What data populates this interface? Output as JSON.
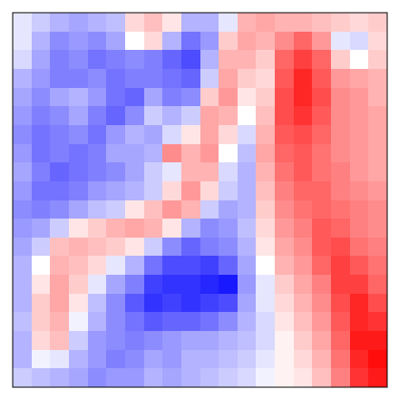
{
  "chart_data": {
    "type": "heatmap",
    "tick_labels": false,
    "color_range": [
      -1,
      1
    ],
    "cells": [
      [
        -0.1,
        -0.2,
        -0.3,
        -0.35,
        -0.3,
        -0.25,
        0.15,
        0.25,
        0.1,
        -0.3,
        -0.3,
        -0.1,
        0.3,
        0.35,
        0.3,
        0.3,
        0.25,
        0.2,
        0.15,
        0.2
      ],
      [
        -0.1,
        -0.3,
        -0.45,
        -0.4,
        -0.45,
        -0.35,
        0.0,
        0.15,
        -0.3,
        -0.55,
        -0.4,
        0.2,
        0.35,
        0.3,
        0.45,
        0.6,
        0.4,
        -0.1,
        -0.15,
        0.15
      ],
      [
        -0.15,
        -0.35,
        -0.5,
        -0.45,
        -0.55,
        -0.5,
        -0.45,
        -0.5,
        -0.6,
        -0.7,
        -0.3,
        0.3,
        0.3,
        0.2,
        0.6,
        0.75,
        0.6,
        0.2,
        0.0,
        0.2
      ],
      [
        -0.3,
        -0.4,
        -0.5,
        -0.5,
        -0.45,
        -0.55,
        -0.5,
        -0.5,
        -0.55,
        -0.6,
        -0.2,
        0.35,
        0.2,
        0.15,
        0.65,
        0.85,
        0.65,
        0.4,
        0.35,
        0.3
      ],
      [
        -0.35,
        -0.45,
        -0.35,
        -0.3,
        -0.4,
        -0.55,
        -0.6,
        -0.35,
        -0.5,
        -0.45,
        0.2,
        0.4,
        0.1,
        0.2,
        0.7,
        0.85,
        0.7,
        0.45,
        0.4,
        0.3
      ],
      [
        -0.4,
        -0.5,
        -0.45,
        -0.35,
        -0.5,
        -0.6,
        -0.45,
        -0.2,
        -0.3,
        -0.2,
        0.35,
        0.3,
        0.0,
        0.25,
        0.7,
        0.8,
        0.65,
        0.45,
        0.4,
        0.35
      ],
      [
        -0.45,
        -0.55,
        -0.5,
        -0.45,
        -0.55,
        -0.4,
        -0.3,
        -0.35,
        -0.15,
        0.1,
        0.35,
        0.15,
        -0.15,
        0.3,
        0.65,
        0.7,
        0.6,
        0.45,
        0.4,
        0.35
      ],
      [
        -0.4,
        -0.55,
        -0.5,
        -0.55,
        -0.5,
        -0.35,
        -0.35,
        -0.3,
        0.45,
        0.3,
        0.4,
        0.0,
        -0.25,
        0.35,
        0.6,
        0.65,
        0.55,
        0.45,
        0.4,
        0.35
      ],
      [
        -0.35,
        -0.5,
        -0.6,
        -0.55,
        -0.5,
        -0.45,
        -0.35,
        -0.2,
        -0.1,
        0.3,
        0.3,
        -0.15,
        -0.3,
        0.3,
        0.55,
        0.65,
        0.55,
        0.5,
        0.4,
        0.35
      ],
      [
        -0.4,
        -0.55,
        -0.55,
        -0.5,
        -0.4,
        -0.35,
        -0.3,
        -0.2,
        0.15,
        0.4,
        0.15,
        -0.2,
        -0.3,
        0.25,
        0.5,
        0.6,
        0.6,
        0.5,
        0.45,
        0.4
      ],
      [
        -0.45,
        -0.5,
        -0.45,
        -0.35,
        -0.25,
        -0.2,
        0.1,
        0.25,
        0.4,
        0.3,
        -0.2,
        -0.35,
        -0.3,
        0.2,
        0.45,
        0.55,
        0.6,
        0.55,
        0.5,
        0.45
      ],
      [
        -0.4,
        -0.35,
        -0.2,
        0.1,
        0.2,
        0.3,
        0.35,
        0.3,
        0.1,
        -0.3,
        -0.45,
        -0.4,
        -0.25,
        0.15,
        0.4,
        0.5,
        0.65,
        0.6,
        0.5,
        0.45
      ],
      [
        -0.35,
        -0.2,
        0.25,
        0.3,
        0.25,
        0.2,
        0.1,
        -0.2,
        -0.45,
        -0.6,
        -0.5,
        -0.45,
        -0.3,
        0.1,
        0.35,
        0.45,
        0.65,
        0.7,
        0.55,
        0.5
      ],
      [
        -0.3,
        0.0,
        0.3,
        0.25,
        0.15,
        -0.1,
        -0.3,
        -0.55,
        -0.7,
        -0.7,
        -0.75,
        -0.6,
        -0.35,
        0.0,
        0.3,
        0.4,
        0.6,
        0.75,
        0.65,
        0.55
      ],
      [
        -0.3,
        0.1,
        0.35,
        0.2,
        -0.1,
        -0.35,
        -0.5,
        -0.75,
        -0.8,
        -0.8,
        -0.85,
        -0.9,
        -0.4,
        -0.1,
        0.2,
        0.35,
        0.5,
        0.75,
        0.75,
        0.6
      ],
      [
        -0.3,
        0.2,
        0.35,
        0.1,
        -0.25,
        -0.45,
        -0.65,
        -0.8,
        -0.75,
        -0.8,
        -0.75,
        -0.7,
        -0.35,
        -0.1,
        0.15,
        0.3,
        0.45,
        0.7,
        0.85,
        0.7
      ],
      [
        -0.25,
        0.2,
        0.3,
        -0.05,
        -0.3,
        -0.45,
        -0.55,
        -0.65,
        -0.6,
        -0.6,
        -0.55,
        -0.45,
        -0.3,
        -0.15,
        0.1,
        0.25,
        0.4,
        0.65,
        0.85,
        0.8
      ],
      [
        -0.3,
        0.15,
        0.25,
        -0.2,
        -0.4,
        -0.45,
        -0.5,
        -0.45,
        -0.4,
        -0.35,
        -0.35,
        -0.3,
        -0.25,
        -0.15,
        0.05,
        0.2,
        0.35,
        0.6,
        0.9,
        0.9
      ],
      [
        -0.3,
        -0.05,
        -0.1,
        -0.3,
        -0.4,
        -0.5,
        -0.45,
        -0.35,
        -0.4,
        -0.3,
        -0.3,
        -0.25,
        -0.2,
        -0.1,
        0.05,
        0.15,
        0.3,
        0.55,
        0.85,
        0.95
      ],
      [
        -0.2,
        -0.25,
        -0.3,
        -0.35,
        -0.45,
        -0.4,
        -0.4,
        -0.3,
        -0.35,
        -0.3,
        -0.25,
        -0.2,
        -0.15,
        -0.05,
        0.05,
        0.1,
        0.25,
        0.5,
        0.8,
        0.9
      ]
    ]
  }
}
